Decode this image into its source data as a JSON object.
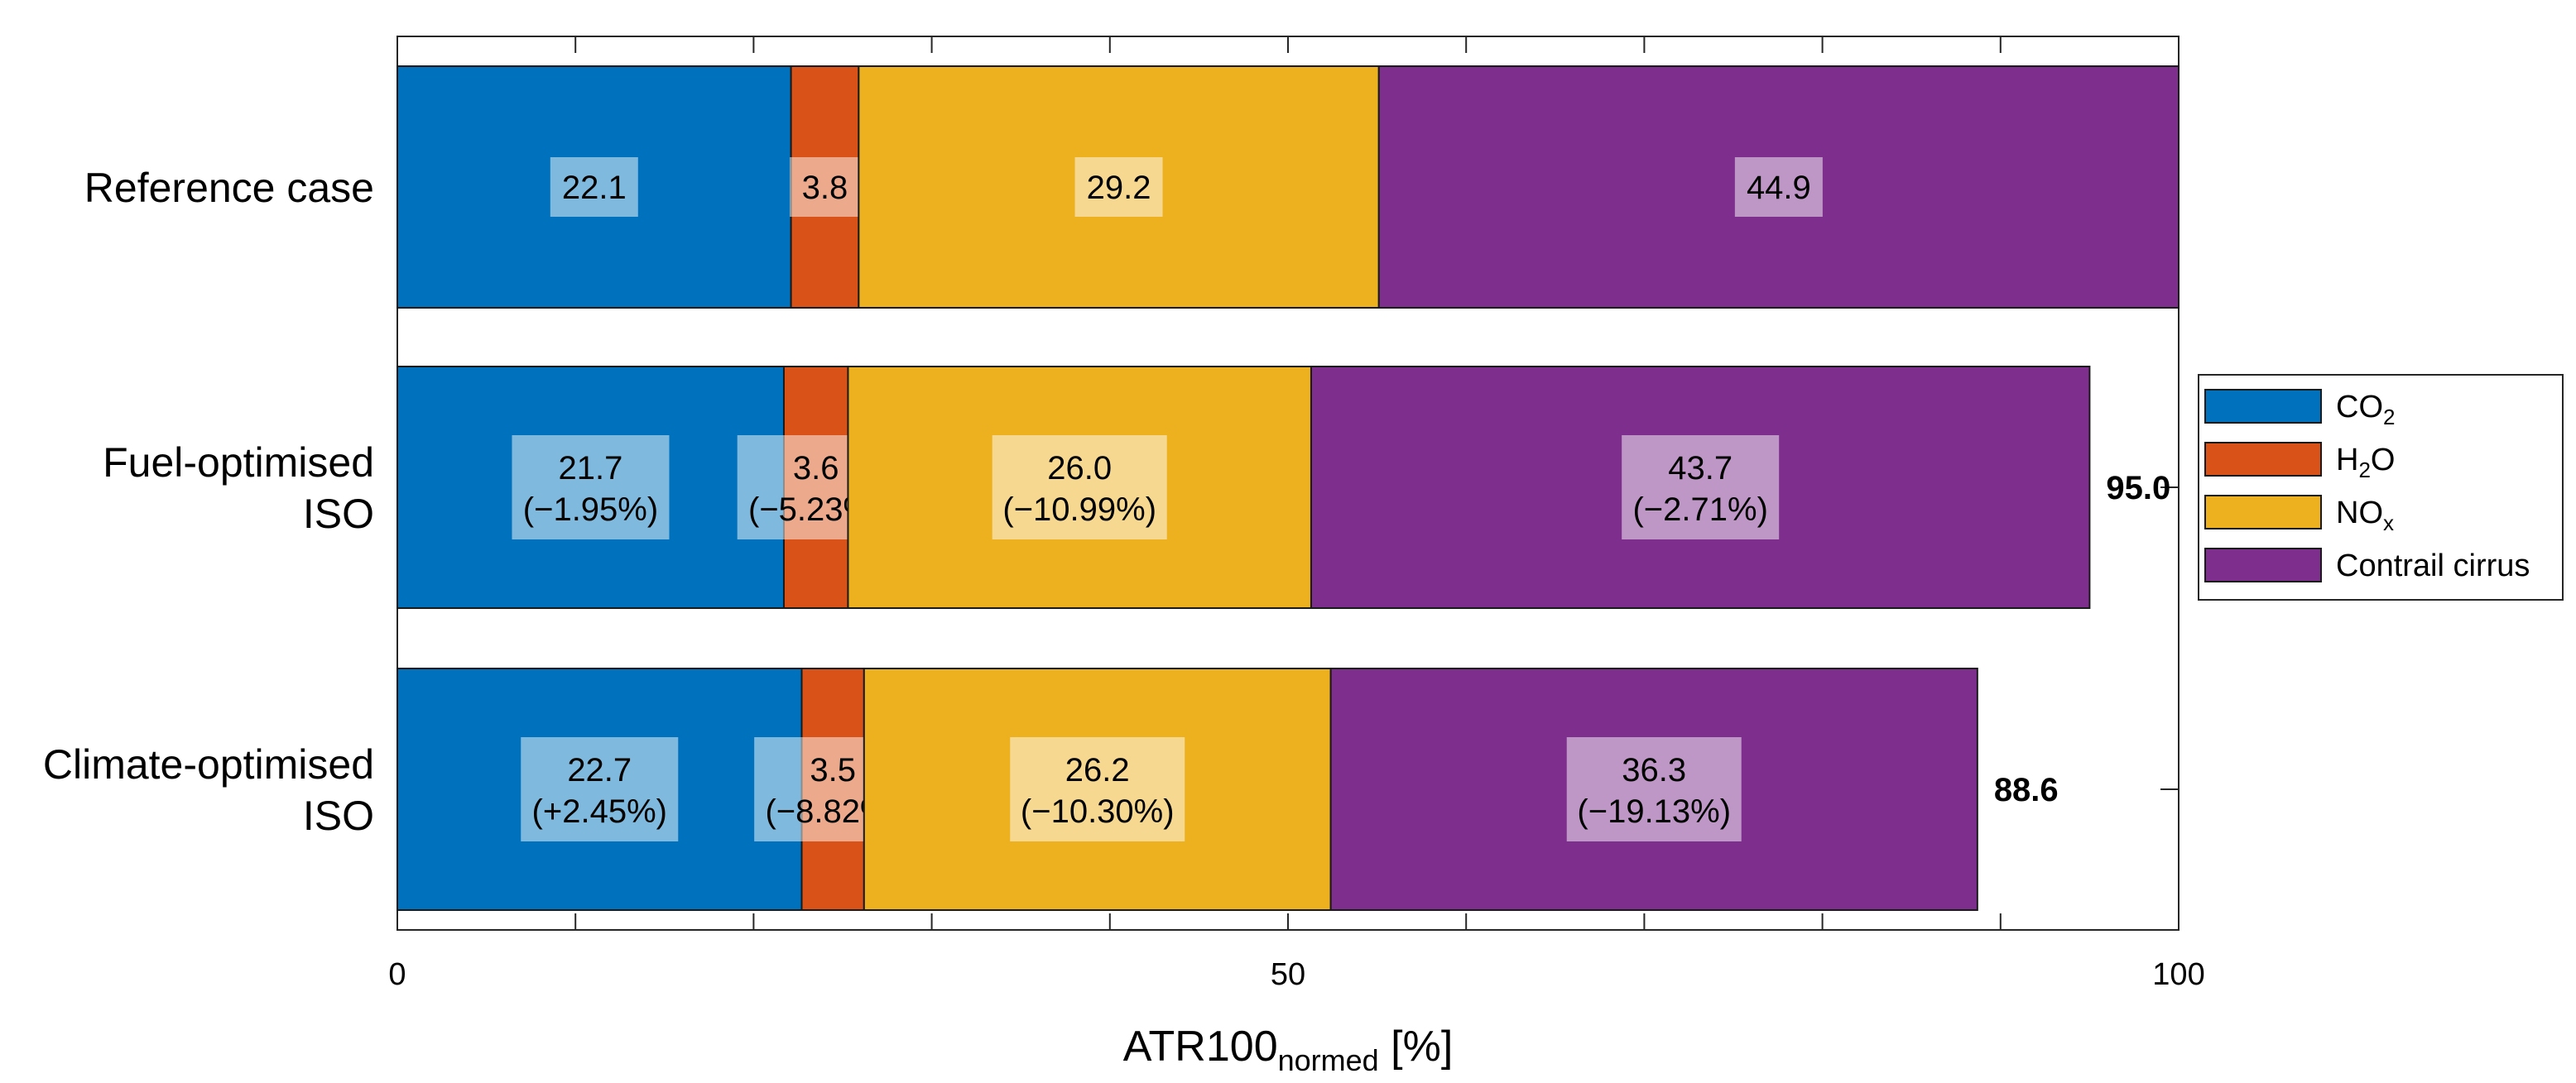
{
  "chart_data": {
    "type": "bar",
    "orientation": "horizontal",
    "stacked": true,
    "categories": [
      "Reference case",
      "Fuel-optimised ISO",
      "Climate-optimised ISO"
    ],
    "category_lines": [
      [
        "Reference case"
      ],
      [
        "Fuel-optimised",
        "ISO"
      ],
      [
        "Climate-optimised",
        "ISO"
      ]
    ],
    "series": [
      {
        "name": "CO2",
        "legend_base": "CO",
        "legend_sub": "2",
        "color": "#0072BD",
        "values": [
          22.1,
          21.7,
          22.7
        ],
        "changes": [
          null,
          "(−1.95%)",
          "(+2.45%)"
        ]
      },
      {
        "name": "H2O",
        "legend_base": "H",
        "legend_sub": "2",
        "legend_tail": "O",
        "color": "#D95319",
        "values": [
          3.8,
          3.6,
          3.5
        ],
        "changes": [
          null,
          "(−5.23%)",
          "(−8.82%)"
        ]
      },
      {
        "name": "NOx",
        "legend_base": "NO",
        "legend_sub": "x",
        "color": "#EDB120",
        "values": [
          29.2,
          26.0,
          26.2
        ],
        "changes": [
          null,
          "(−10.99%)",
          "(−10.30%)"
        ]
      },
      {
        "name": "Contrail cirrus",
        "legend_base": "Contrail cirrus",
        "color": "#7E2F8E",
        "values": [
          44.9,
          43.7,
          36.3
        ],
        "changes": [
          null,
          "(−2.71%)",
          "(−19.13%)"
        ]
      }
    ],
    "totals": [
      null,
      "95.0",
      "88.6"
    ],
    "xlim": [
      0,
      100
    ],
    "xticks": [
      0,
      50,
      100
    ],
    "xlabel_main": "ATR100",
    "xlabel_sub": "normed",
    "xlabel_unit": " [%]",
    "legend_position": "right"
  }
}
